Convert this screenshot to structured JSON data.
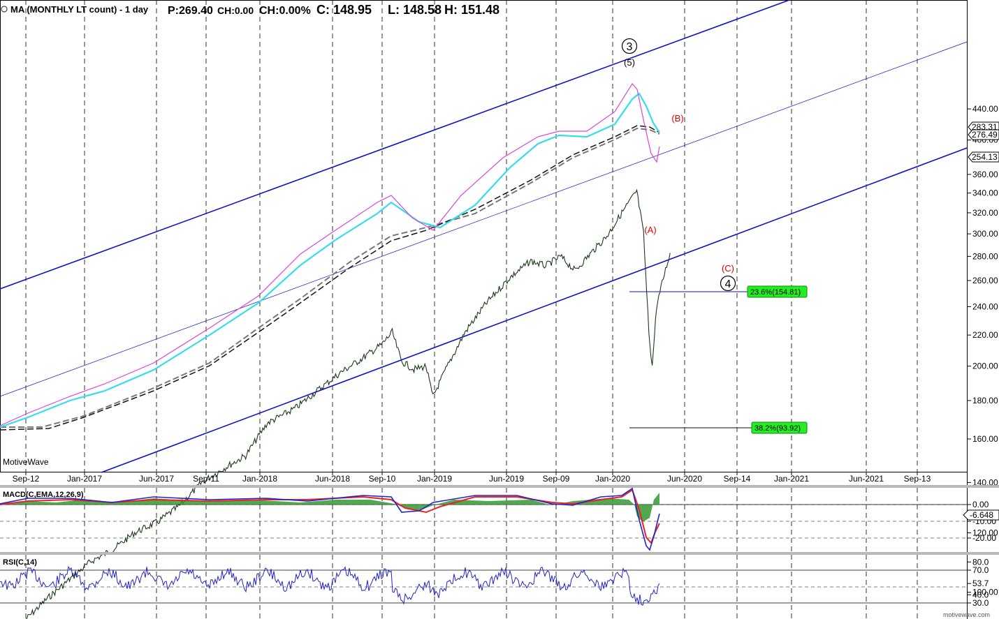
{
  "header": {
    "symbol": "MA (MONTHLY LT count) - 1 day",
    "price": "P:269.40",
    "change": "CH:0.00",
    "change_pct": "CH:0.00%",
    "close": "C: 148.95",
    "low": "L: 148.58",
    "high": "H: 151.48"
  },
  "watermark": "MotiveWave",
  "source": "motivewave.com",
  "colors": {
    "channel": "#1010cc",
    "ma_cyan": "#33ddee",
    "ma_pink": "#dd44dd",
    "ma_black": "#111111",
    "ma_gray": "#666666",
    "fib_green": "#22ee22",
    "wave_red": "#dd0000",
    "macd_blue": "#2222cc",
    "macd_red": "#ee2222",
    "hist_green": "#339933"
  },
  "price_axis": {
    "scale": "log",
    "ticks": [
      "440.00",
      "400.00",
      "360.00",
      "340.00",
      "320.00",
      "300.00",
      "280.00",
      "260.00",
      "240.00",
      "220.00",
      "200.00",
      "180.00",
      "160.00",
      "140.00",
      "120.00",
      "100.00"
    ],
    "labels": [
      {
        "text": "283.31",
        "style": "plain"
      },
      {
        "text": "276.49",
        "style": "plain"
      },
      {
        "text": "254.13",
        "style": "plain"
      }
    ]
  },
  "time_axis": {
    "labels": [
      "Sep-12",
      "Jan-2017",
      "Jun-2017",
      "Sep-11",
      "Jan-2018",
      "Jun-2018",
      "Sep-10",
      "Jan-2019",
      "Jun-2019",
      "Sep-09",
      "Jan-2020",
      "Jun-2020",
      "Sep-14",
      "Jan-2021",
      "Jun-2021",
      "Sep-13"
    ]
  },
  "wave_labels": {
    "circle3": "3",
    "w5": "(5)",
    "wA": "(A)",
    "wB": "(B)",
    "wC": "(C)",
    "circle4": "4"
  },
  "fib": {
    "f236": "23.6%(154.81)",
    "f382": "38.2%(93.92)"
  },
  "macd": {
    "title": "MACD(C,EMA,12,26,9)",
    "ticks": [
      "0.00",
      "-10.00",
      "-20.00"
    ],
    "current": "-6.648"
  },
  "rsi": {
    "title": "RSI(C,14)",
    "ticks": [
      "80.0",
      "70.0",
      "53.7",
      "40.0",
      "30.0"
    ],
    "current": "53.7"
  },
  "chart_data": {
    "type": "line",
    "title": "MA (MONTHLY LT count) - 1 day",
    "y_scale": "log",
    "ylim": [
      85,
      450
    ],
    "series": [
      {
        "values": [
          [
            "2016-09-01",
            92
          ],
          [
            "2016-10-15",
            98
          ],
          [
            "2016-12-01",
            104
          ],
          [
            "2017-01-15",
            110
          ],
          [
            "2017-03-01",
            114
          ],
          [
            "2017-04-15",
            120
          ],
          [
            "2017-06-01",
            124
          ],
          [
            "2017-07-15",
            130
          ],
          [
            "2017-09-01",
            140
          ],
          [
            "2017-10-15",
            146
          ],
          [
            "2017-12-01",
            152
          ],
          [
            "2018-01-15",
            168
          ],
          [
            "2018-02-15",
            172
          ],
          [
            "2018-03-15",
            176
          ],
          [
            "2018-05-01",
            186
          ],
          [
            "2018-06-15",
            196
          ],
          [
            "2018-08-01",
            205
          ],
          [
            "2018-09-10",
            214
          ],
          [
            "2018-10-01",
            222
          ],
          [
            "2018-10-20",
            203
          ],
          [
            "2018-11-15",
            198
          ],
          [
            "2018-12-10",
            200
          ],
          [
            "2018-12-24",
            182
          ],
          [
            "2019-01-20",
            198
          ],
          [
            "2019-03-01",
            222
          ],
          [
            "2019-04-15",
            243
          ],
          [
            "2019-06-01",
            262
          ],
          [
            "2019-07-15",
            276
          ],
          [
            "2019-08-15",
            272
          ],
          [
            "2019-09-15",
            280
          ],
          [
            "2019-10-15",
            268
          ],
          [
            "2019-11-15",
            282
          ],
          [
            "2019-12-20",
            298
          ],
          [
            "2020-01-20",
            320
          ],
          [
            "2020-02-20",
            342
          ],
          [
            "2020-03-05",
            300
          ],
          [
            "2020-03-16",
            222
          ],
          [
            "2020-03-23",
            200
          ],
          [
            "2020-04-01",
            240
          ],
          [
            "2020-04-15",
            262
          ],
          [
            "2020-04-29",
            283
          ]
        ]
      }
    ]
  }
}
